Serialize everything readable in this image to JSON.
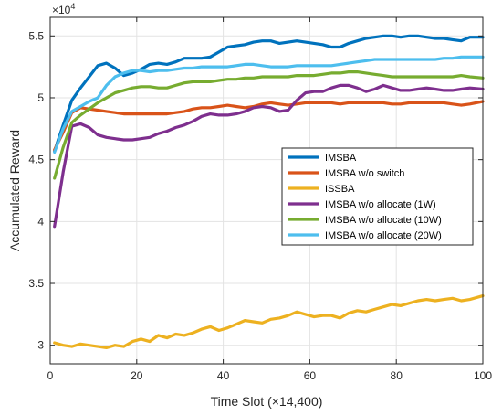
{
  "chart_data": {
    "type": "line",
    "title": "",
    "xlabel": "Time Slot (×14,400)",
    "ylabel": "Accumulated Reward",
    "y_exponent": {
      "base": "×10",
      "power": "4"
    },
    "xlim": [
      0,
      100
    ],
    "ylim": [
      2.85,
      5.65
    ],
    "x_ticks": [
      0,
      20,
      40,
      60,
      80,
      100
    ],
    "x_tick_labels": [
      "0",
      "20",
      "40",
      "60",
      "80",
      "100"
    ],
    "y_ticks": [
      3,
      3.5,
      4,
      4.5,
      5,
      5.5
    ],
    "y_tick_labels": [
      "3",
      "3.5",
      "4",
      "4.5",
      "5",
      "5.5"
    ],
    "grid": true,
    "legend_position": "center-right",
    "series": [
      {
        "name": "IMSBA",
        "color": "#0072BD",
        "points": [
          [
            1,
            4.57
          ],
          [
            3,
            4.78
          ],
          [
            5,
            4.98
          ],
          [
            7,
            5.08
          ],
          [
            9,
            5.17
          ],
          [
            11,
            5.26
          ],
          [
            13,
            5.28
          ],
          [
            15,
            5.24
          ],
          [
            17,
            5.18
          ],
          [
            19,
            5.2
          ],
          [
            21,
            5.23
          ],
          [
            23,
            5.27
          ],
          [
            25,
            5.28
          ],
          [
            27,
            5.27
          ],
          [
            29,
            5.29
          ],
          [
            31,
            5.32
          ],
          [
            33,
            5.32
          ],
          [
            35,
            5.32
          ],
          [
            37,
            5.33
          ],
          [
            39,
            5.37
          ],
          [
            41,
            5.41
          ],
          [
            43,
            5.42
          ],
          [
            45,
            5.43
          ],
          [
            47,
            5.45
          ],
          [
            49,
            5.46
          ],
          [
            51,
            5.46
          ],
          [
            53,
            5.44
          ],
          [
            55,
            5.45
          ],
          [
            57,
            5.46
          ],
          [
            59,
            5.45
          ],
          [
            61,
            5.44
          ],
          [
            63,
            5.43
          ],
          [
            65,
            5.41
          ],
          [
            67,
            5.41
          ],
          [
            69,
            5.44
          ],
          [
            71,
            5.46
          ],
          [
            73,
            5.48
          ],
          [
            75,
            5.49
          ],
          [
            77,
            5.5
          ],
          [
            79,
            5.5
          ],
          [
            81,
            5.49
          ],
          [
            83,
            5.5
          ],
          [
            85,
            5.5
          ],
          [
            87,
            5.49
          ],
          [
            89,
            5.48
          ],
          [
            91,
            5.48
          ],
          [
            93,
            5.47
          ],
          [
            95,
            5.46
          ],
          [
            97,
            5.49
          ],
          [
            100,
            5.49
          ]
        ]
      },
      {
        "name": "IMSBA w/o switch",
        "color": "#D95319",
        "points": [
          [
            1,
            4.58
          ],
          [
            3,
            4.72
          ],
          [
            5,
            4.88
          ],
          [
            7,
            4.92
          ],
          [
            9,
            4.91
          ],
          [
            11,
            4.9
          ],
          [
            13,
            4.89
          ],
          [
            15,
            4.88
          ],
          [
            17,
            4.87
          ],
          [
            19,
            4.87
          ],
          [
            21,
            4.87
          ],
          [
            23,
            4.87
          ],
          [
            25,
            4.87
          ],
          [
            27,
            4.87
          ],
          [
            29,
            4.88
          ],
          [
            31,
            4.89
          ],
          [
            33,
            4.91
          ],
          [
            35,
            4.92
          ],
          [
            37,
            4.92
          ],
          [
            39,
            4.93
          ],
          [
            41,
            4.94
          ],
          [
            43,
            4.93
          ],
          [
            45,
            4.92
          ],
          [
            47,
            4.93
          ],
          [
            49,
            4.95
          ],
          [
            51,
            4.96
          ],
          [
            53,
            4.95
          ],
          [
            55,
            4.94
          ],
          [
            57,
            4.95
          ],
          [
            59,
            4.96
          ],
          [
            61,
            4.96
          ],
          [
            63,
            4.96
          ],
          [
            65,
            4.96
          ],
          [
            67,
            4.95
          ],
          [
            69,
            4.96
          ],
          [
            71,
            4.96
          ],
          [
            73,
            4.96
          ],
          [
            75,
            4.96
          ],
          [
            77,
            4.96
          ],
          [
            79,
            4.95
          ],
          [
            81,
            4.95
          ],
          [
            83,
            4.96
          ],
          [
            85,
            4.96
          ],
          [
            87,
            4.96
          ],
          [
            89,
            4.96
          ],
          [
            91,
            4.96
          ],
          [
            93,
            4.95
          ],
          [
            95,
            4.94
          ],
          [
            97,
            4.95
          ],
          [
            100,
            4.97
          ]
        ]
      },
      {
        "name": "ISSBA",
        "color": "#EDB120",
        "points": [
          [
            1,
            3.02
          ],
          [
            3,
            3.0
          ],
          [
            5,
            2.99
          ],
          [
            7,
            3.01
          ],
          [
            9,
            3.0
          ],
          [
            11,
            2.99
          ],
          [
            13,
            2.98
          ],
          [
            15,
            3.0
          ],
          [
            17,
            2.99
          ],
          [
            19,
            3.03
          ],
          [
            21,
            3.05
          ],
          [
            23,
            3.03
          ],
          [
            25,
            3.08
          ],
          [
            27,
            3.06
          ],
          [
            29,
            3.09
          ],
          [
            31,
            3.08
          ],
          [
            33,
            3.1
          ],
          [
            35,
            3.13
          ],
          [
            37,
            3.15
          ],
          [
            39,
            3.12
          ],
          [
            41,
            3.14
          ],
          [
            43,
            3.17
          ],
          [
            45,
            3.2
          ],
          [
            47,
            3.19
          ],
          [
            49,
            3.18
          ],
          [
            51,
            3.21
          ],
          [
            53,
            3.22
          ],
          [
            55,
            3.24
          ],
          [
            57,
            3.27
          ],
          [
            59,
            3.25
          ],
          [
            61,
            3.23
          ],
          [
            63,
            3.24
          ],
          [
            65,
            3.24
          ],
          [
            67,
            3.22
          ],
          [
            69,
            3.26
          ],
          [
            71,
            3.28
          ],
          [
            73,
            3.27
          ],
          [
            75,
            3.29
          ],
          [
            77,
            3.31
          ],
          [
            79,
            3.33
          ],
          [
            81,
            3.32
          ],
          [
            83,
            3.34
          ],
          [
            85,
            3.36
          ],
          [
            87,
            3.37
          ],
          [
            89,
            3.36
          ],
          [
            91,
            3.37
          ],
          [
            93,
            3.38
          ],
          [
            95,
            3.36
          ],
          [
            97,
            3.37
          ],
          [
            100,
            3.4
          ]
        ]
      },
      {
        "name": "IMSBA w/o allocate (1W)",
        "color": "#7E2F8E",
        "points": [
          [
            1,
            3.96
          ],
          [
            3,
            4.4
          ],
          [
            5,
            4.77
          ],
          [
            7,
            4.79
          ],
          [
            9,
            4.76
          ],
          [
            11,
            4.7
          ],
          [
            13,
            4.68
          ],
          [
            15,
            4.67
          ],
          [
            17,
            4.66
          ],
          [
            19,
            4.66
          ],
          [
            21,
            4.67
          ],
          [
            23,
            4.68
          ],
          [
            25,
            4.71
          ],
          [
            27,
            4.73
          ],
          [
            29,
            4.76
          ],
          [
            31,
            4.78
          ],
          [
            33,
            4.81
          ],
          [
            35,
            4.85
          ],
          [
            37,
            4.87
          ],
          [
            39,
            4.86
          ],
          [
            41,
            4.86
          ],
          [
            43,
            4.87
          ],
          [
            45,
            4.89
          ],
          [
            47,
            4.92
          ],
          [
            49,
            4.93
          ],
          [
            51,
            4.92
          ],
          [
            53,
            4.89
          ],
          [
            55,
            4.9
          ],
          [
            57,
            4.98
          ],
          [
            59,
            5.04
          ],
          [
            61,
            5.05
          ],
          [
            63,
            5.05
          ],
          [
            65,
            5.08
          ],
          [
            67,
            5.1
          ],
          [
            69,
            5.1
          ],
          [
            71,
            5.08
          ],
          [
            73,
            5.05
          ],
          [
            75,
            5.07
          ],
          [
            77,
            5.1
          ],
          [
            79,
            5.08
          ],
          [
            81,
            5.06
          ],
          [
            83,
            5.06
          ],
          [
            85,
            5.07
          ],
          [
            87,
            5.08
          ],
          [
            89,
            5.07
          ],
          [
            91,
            5.06
          ],
          [
            93,
            5.06
          ],
          [
            95,
            5.07
          ],
          [
            97,
            5.08
          ],
          [
            100,
            5.07
          ]
        ]
      },
      {
        "name": "IMSBA w/o allocate (10W)",
        "color": "#77AC30",
        "points": [
          [
            1,
            4.35
          ],
          [
            3,
            4.6
          ],
          [
            5,
            4.8
          ],
          [
            7,
            4.86
          ],
          [
            9,
            4.91
          ],
          [
            11,
            4.96
          ],
          [
            13,
            5.0
          ],
          [
            15,
            5.04
          ],
          [
            17,
            5.06
          ],
          [
            19,
            5.08
          ],
          [
            21,
            5.09
          ],
          [
            23,
            5.09
          ],
          [
            25,
            5.08
          ],
          [
            27,
            5.08
          ],
          [
            29,
            5.1
          ],
          [
            31,
            5.12
          ],
          [
            33,
            5.13
          ],
          [
            35,
            5.13
          ],
          [
            37,
            5.13
          ],
          [
            39,
            5.14
          ],
          [
            41,
            5.15
          ],
          [
            43,
            5.15
          ],
          [
            45,
            5.16
          ],
          [
            47,
            5.16
          ],
          [
            49,
            5.17
          ],
          [
            51,
            5.17
          ],
          [
            53,
            5.17
          ],
          [
            55,
            5.17
          ],
          [
            57,
            5.18
          ],
          [
            59,
            5.18
          ],
          [
            61,
            5.18
          ],
          [
            63,
            5.19
          ],
          [
            65,
            5.2
          ],
          [
            67,
            5.2
          ],
          [
            69,
            5.21
          ],
          [
            71,
            5.21
          ],
          [
            73,
            5.2
          ],
          [
            75,
            5.19
          ],
          [
            77,
            5.18
          ],
          [
            79,
            5.17
          ],
          [
            81,
            5.17
          ],
          [
            83,
            5.17
          ],
          [
            85,
            5.17
          ],
          [
            87,
            5.17
          ],
          [
            89,
            5.17
          ],
          [
            91,
            5.17
          ],
          [
            93,
            5.17
          ],
          [
            95,
            5.18
          ],
          [
            97,
            5.17
          ],
          [
            100,
            5.16
          ]
        ]
      },
      {
        "name": "IMSBA w/o allocate (20W)",
        "color": "#4DBEEE",
        "points": [
          [
            1,
            4.56
          ],
          [
            3,
            4.75
          ],
          [
            5,
            4.89
          ],
          [
            7,
            4.93
          ],
          [
            9,
            4.97
          ],
          [
            11,
            5.0
          ],
          [
            13,
            5.1
          ],
          [
            15,
            5.17
          ],
          [
            17,
            5.2
          ],
          [
            19,
            5.22
          ],
          [
            21,
            5.22
          ],
          [
            23,
            5.21
          ],
          [
            25,
            5.22
          ],
          [
            27,
            5.22
          ],
          [
            29,
            5.23
          ],
          [
            31,
            5.24
          ],
          [
            33,
            5.24
          ],
          [
            35,
            5.25
          ],
          [
            37,
            5.25
          ],
          [
            39,
            5.25
          ],
          [
            41,
            5.25
          ],
          [
            43,
            5.26
          ],
          [
            45,
            5.27
          ],
          [
            47,
            5.27
          ],
          [
            49,
            5.26
          ],
          [
            51,
            5.25
          ],
          [
            53,
            5.25
          ],
          [
            55,
            5.25
          ],
          [
            57,
            5.26
          ],
          [
            59,
            5.26
          ],
          [
            61,
            5.26
          ],
          [
            63,
            5.26
          ],
          [
            65,
            5.26
          ],
          [
            67,
            5.27
          ],
          [
            69,
            5.28
          ],
          [
            71,
            5.29
          ],
          [
            73,
            5.3
          ],
          [
            75,
            5.31
          ],
          [
            77,
            5.31
          ],
          [
            79,
            5.31
          ],
          [
            81,
            5.31
          ],
          [
            83,
            5.31
          ],
          [
            85,
            5.31
          ],
          [
            87,
            5.31
          ],
          [
            89,
            5.31
          ],
          [
            91,
            5.32
          ],
          [
            93,
            5.32
          ],
          [
            95,
            5.33
          ],
          [
            97,
            5.33
          ],
          [
            100,
            5.33
          ]
        ]
      }
    ]
  }
}
